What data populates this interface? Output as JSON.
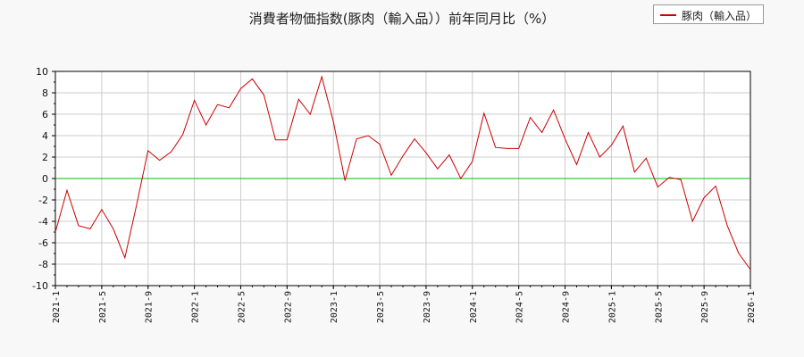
{
  "chart_data": {
    "type": "line",
    "title": "消費者物価指数(豚肉（輸入品））前年同月比（%）",
    "xlabel": "",
    "ylabel": "",
    "ylim": [
      -10,
      10
    ],
    "yticks": [
      10,
      8,
      6,
      4,
      2,
      0,
      -2,
      -4,
      -6,
      -8,
      -10
    ],
    "xticks": [
      "2021-1",
      "2021-5",
      "2021-9",
      "2022-1",
      "2022-5",
      "2022-9",
      "2023-1",
      "2023-5",
      "2023-9",
      "2024-1",
      "2024-5",
      "2024-9",
      "2025-1",
      "2025-5",
      "2025-9",
      "2026-1"
    ],
    "grid": true,
    "legend_position": "top-right",
    "zero_line_color": "#00bb00",
    "series": [
      {
        "name": "豚肉（輸入品）",
        "color": "#cc0000",
        "x": [
          "2021-1",
          "2021-2",
          "2021-3",
          "2021-4",
          "2021-5",
          "2021-6",
          "2021-7",
          "2021-8",
          "2021-9",
          "2021-10",
          "2021-11",
          "2021-12",
          "2022-1",
          "2022-2",
          "2022-3",
          "2022-4",
          "2022-5",
          "2022-6",
          "2022-7",
          "2022-8",
          "2022-9",
          "2022-10",
          "2022-11",
          "2022-12",
          "2023-1",
          "2023-2",
          "2023-3",
          "2023-4",
          "2023-5",
          "2023-6",
          "2023-7",
          "2023-8",
          "2023-9",
          "2023-10",
          "2023-11",
          "2023-12",
          "2024-1",
          "2024-2",
          "2024-3",
          "2024-4",
          "2024-5",
          "2024-6",
          "2024-7",
          "2024-8",
          "2024-9",
          "2024-10",
          "2024-11",
          "2024-12",
          "2025-1",
          "2025-2",
          "2025-3",
          "2025-4",
          "2025-5",
          "2025-6",
          "2025-7",
          "2025-8",
          "2025-9",
          "2025-10",
          "2025-11",
          "2025-12",
          "2026-1"
        ],
        "values": [
          -5.0,
          -1.1,
          -4.4,
          -4.7,
          -2.9,
          -4.7,
          -7.4,
          -2.5,
          2.6,
          1.7,
          2.5,
          4.1,
          7.3,
          5.0,
          6.9,
          6.6,
          8.4,
          9.3,
          7.8,
          3.6,
          3.6,
          7.4,
          6.0,
          9.5,
          5.3,
          -0.2,
          3.7,
          4.0,
          3.2,
          0.3,
          2.1,
          3.7,
          2.4,
          0.9,
          2.2,
          0.0,
          1.6,
          6.1,
          2.9,
          2.8,
          2.8,
          5.7,
          4.3,
          6.4,
          3.7,
          1.3,
          4.3,
          2.0,
          3.1,
          4.9,
          0.6,
          1.9,
          -0.8,
          0.1,
          -0.1,
          -4.0,
          -1.8,
          -0.7,
          -4.4,
          -7.0,
          -8.5
        ]
      }
    ]
  }
}
